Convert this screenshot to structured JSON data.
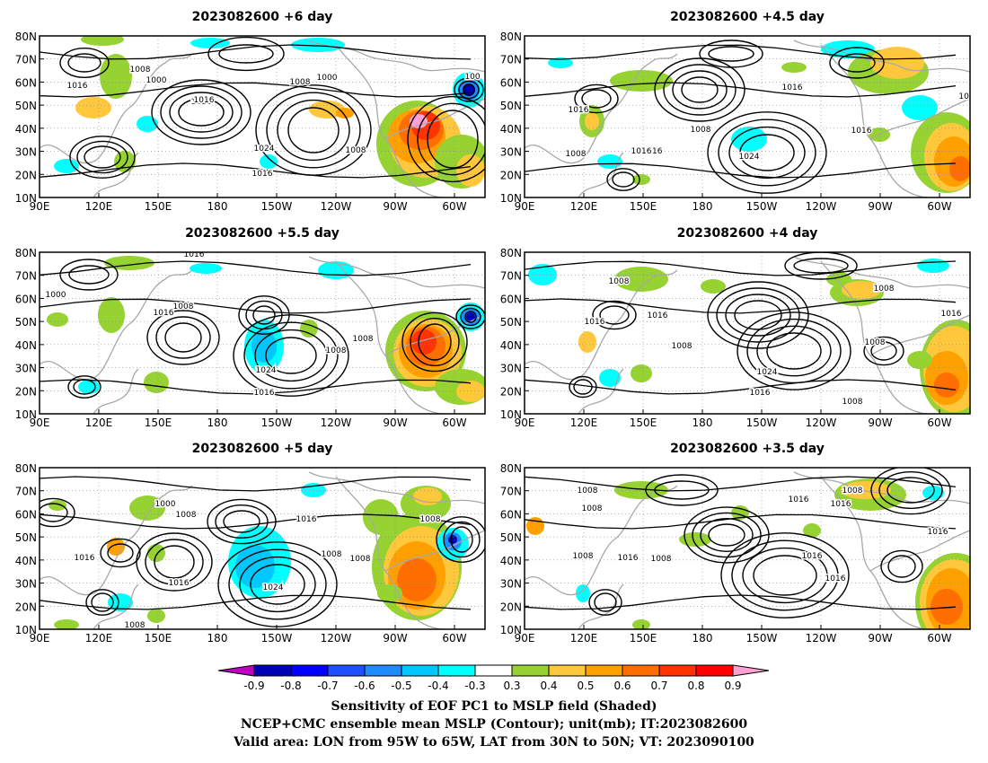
{
  "panels": [
    {
      "title": "2023082600  +6 day",
      "contour_labels": [
        "1008",
        "1016",
        "1000",
        "1016",
        "1008",
        "1000",
        "1016",
        "1024",
        "1016",
        "1008",
        "100"
      ]
    },
    {
      "title": "2023082600  +4.5 day",
      "contour_labels": [
        "1016",
        "1016",
        "1008",
        "1016",
        "1016",
        "1024",
        "1008",
        "1016",
        "101"
      ]
    },
    {
      "title": "2023082600  +5.5 day",
      "contour_labels": [
        "1016",
        "1000",
        "1008",
        "1016",
        "1024",
        "1016",
        "1008",
        "1008"
      ]
    },
    {
      "title": "2023082600  +4 day",
      "contour_labels": [
        "1008",
        "1016",
        "1008",
        "1016",
        "1008",
        "1024",
        "1016",
        "1008",
        "1008",
        "1016"
      ]
    },
    {
      "title": "2023082600  +5 day",
      "contour_labels": [
        "1000",
        "1008",
        "1016",
        "1016",
        "1016",
        "1024",
        "1008",
        "1008",
        "1008",
        "1008"
      ]
    },
    {
      "title": "2023082600  +3.5 day",
      "contour_labels": [
        "1008",
        "1016",
        "1008",
        "1016",
        "1008",
        "1016",
        "1016",
        "1008",
        "1016",
        "1016",
        "1008"
      ]
    }
  ],
  "lat_ticks": [
    "80N",
    "70N",
    "60N",
    "50N",
    "40N",
    "30N",
    "20N",
    "10N"
  ],
  "lon_ticks": [
    "90E",
    "120E",
    "150E",
    "180",
    "150W",
    "120W",
    "90W",
    "60W"
  ],
  "colorbar": {
    "labels": [
      "-0.9",
      "-0.8",
      "-0.7",
      "-0.6",
      "-0.5",
      "-0.4",
      "-0.3",
      "0.3",
      "0.4",
      "0.5",
      "0.6",
      "0.7",
      "0.8",
      "0.9"
    ],
    "colors": [
      "#c000c0",
      "#0000b4",
      "#0000ff",
      "#1e50ff",
      "#1e8cff",
      "#00c8ff",
      "#00ffff",
      "#ffffff",
      "#96d232",
      "#ffc83c",
      "#ffa000",
      "#ff6e00",
      "#ff3200",
      "#ff0000",
      "#ffa0d2"
    ]
  },
  "footer": [
    "Sensitivity of EOF PC1 to MSLP field (Shaded)",
    "NCEP+CMC ensemble mean MSLP (Contour); unit(mb); IT:2023082600",
    "Valid area: LON from 95W to 65W, LAT from 30N to 50N; VT: 2023090100"
  ]
}
